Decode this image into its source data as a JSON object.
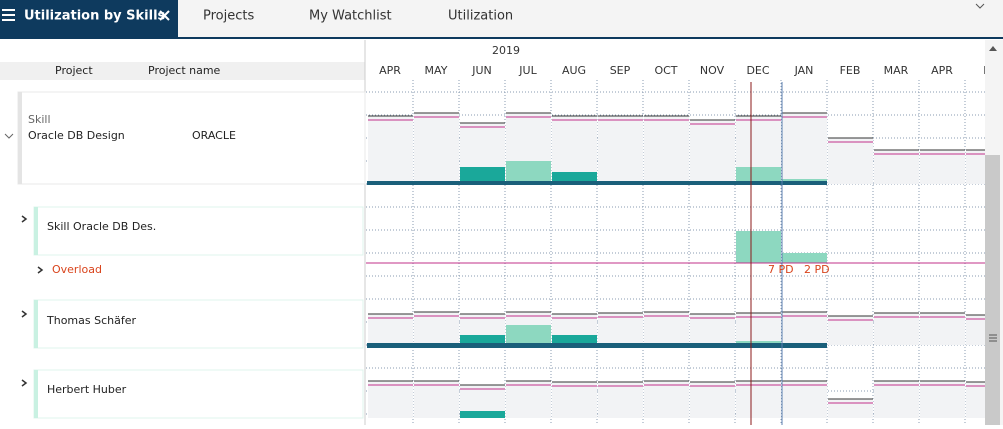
{
  "tabs": [
    "Utilization by Skills",
    "Projects",
    "My Watchlist",
    "Utilization"
  ],
  "header": {
    "year": "2019",
    "columns": [
      "Project",
      "Project name"
    ],
    "months": [
      "APR",
      "MAY",
      "JUN",
      "JUL",
      "AUG",
      "SEP",
      "OCT",
      "NOV",
      "DEC",
      "JAN",
      "FEB",
      "MAR",
      "APR",
      "M"
    ]
  },
  "skill_row": {
    "type": "Skill",
    "name": "Oracle DB Design",
    "project": "ORACLE"
  },
  "rows": [
    "Skill Oracle DB Des.",
    "Overload",
    "Thomas Schäfer",
    "Herbert Huber"
  ],
  "overload_labels": [
    "7 PD",
    "2 PD"
  ]
}
